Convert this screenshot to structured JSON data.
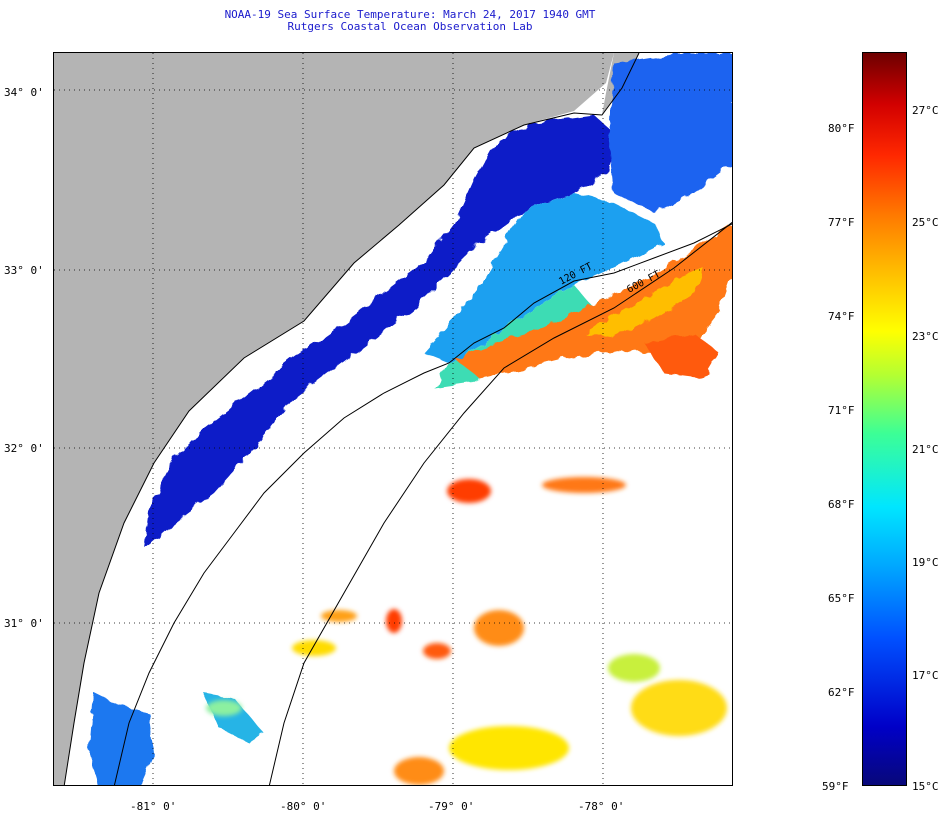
{
  "header": {
    "title": "NOAA-19 Sea Surface Temperature:  March 24, 2017 1940 GMT",
    "subtitle": "Rutgers Coastal Ocean Observation Lab"
  },
  "map": {
    "lat_labels": [
      "34° 0'",
      "33° 0'",
      "32° 0'",
      "31° 0'"
    ],
    "lon_labels": [
      "-81° 0'",
      "-80° 0'",
      "-79° 0'",
      "-78° 0'"
    ],
    "contours": [
      "120 FT",
      "600 FT"
    ],
    "colors": {
      "land": "#b4b4b4",
      "cloud": "#ffffff",
      "cold": "#0a1ec8",
      "warm": "#ff7814"
    }
  },
  "colorbar": {
    "fahrenheit_labels": [
      "80°F",
      "77°F",
      "74°F",
      "71°F",
      "68°F",
      "65°F",
      "62°F",
      "59°F"
    ],
    "celsius_labels": [
      "27°C",
      "25°C",
      "23°C",
      "21°C",
      "19°C",
      "17°C",
      "15°C"
    ],
    "range_c": [
      15,
      28
    ],
    "range_f": [
      59,
      82
    ]
  }
}
